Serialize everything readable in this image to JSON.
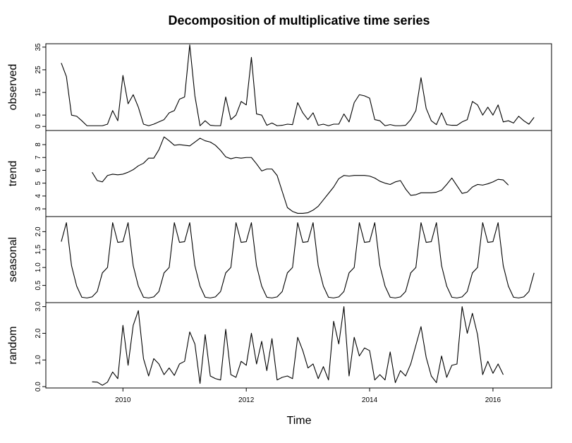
{
  "chart_data": {
    "type": "line",
    "title": "Decomposition of multiplicative time series",
    "xlabel": "Time",
    "xlim": [
      2008.75,
      2016.95
    ],
    "x_ticks": [
      2010,
      2012,
      2014,
      2016
    ],
    "x_tick_labels": [
      "2010",
      "2012",
      "2014",
      "2016"
    ],
    "x_start": 2009.0,
    "frequency": 12,
    "grid": false,
    "panels": [
      {
        "name": "observed",
        "ylabel": "observed",
        "ylim": [
          -1.8,
          36.5
        ],
        "y_ticks": [
          0,
          5,
          15,
          25,
          35
        ],
        "y_tick_labels": [
          "0",
          "5",
          "15",
          "25",
          "35"
        ],
        "values": [
          28,
          22,
          5,
          4.5,
          2.5,
          0.3,
          0.3,
          0.3,
          0.3,
          1,
          7,
          2.5,
          22.5,
          10,
          14,
          8.5,
          1,
          0.3,
          1,
          2,
          3,
          6,
          7,
          12,
          13,
          36,
          13.5,
          0.3,
          2.5,
          0.5,
          0.3,
          0.3,
          13,
          3,
          5,
          11,
          9.5,
          30.5,
          5.5,
          5,
          0.5,
          1.5,
          0.3,
          0.5,
          1,
          0.8,
          10.5,
          6,
          3,
          6,
          0.5,
          1,
          0.3,
          1,
          1,
          5.5,
          2,
          10.5,
          14,
          13.5,
          12.5,
          3,
          2.5,
          0.3,
          0.8,
          0.3,
          0.3,
          0.5,
          3,
          7,
          21.5,
          8,
          2.5,
          0.8,
          6,
          0.8,
          0.5,
          0.5,
          2,
          3,
          11,
          9.5,
          5,
          8.5,
          5,
          9.5,
          2,
          2.5,
          1.5,
          4.5,
          2.5,
          1,
          4
        ]
      },
      {
        "name": "trend",
        "ylabel": "trend",
        "ylim": [
          2.4,
          9.1
        ],
        "y_ticks": [
          3,
          4,
          5,
          6,
          7,
          8
        ],
        "y_tick_labels": [
          "3",
          "4",
          "5",
          "6",
          "7",
          "8"
        ],
        "start_index": 6,
        "values": [
          5.85,
          5.2,
          5.1,
          5.6,
          5.7,
          5.65,
          5.7,
          5.85,
          6.05,
          6.35,
          6.55,
          6.95,
          6.95,
          7.6,
          8.6,
          8.3,
          7.95,
          8.0,
          7.95,
          7.9,
          8.2,
          8.5,
          8.3,
          8.2,
          7.95,
          7.55,
          7.05,
          6.9,
          7.0,
          6.95,
          7.0,
          7.0,
          6.5,
          5.95,
          6.1,
          6.1,
          5.6,
          4.35,
          3.1,
          2.8,
          2.65,
          2.65,
          2.7,
          2.9,
          3.2,
          3.7,
          4.2,
          4.7,
          5.35,
          5.6,
          5.55,
          5.6,
          5.6,
          5.6,
          5.55,
          5.4,
          5.15,
          5.0,
          4.9,
          5.1,
          5.2,
          4.55,
          4.05,
          4.1,
          4.25,
          4.25,
          4.25,
          4.3,
          4.45,
          4.9,
          5.4,
          4.8,
          4.2,
          4.3,
          4.7,
          4.9,
          4.85,
          4.95,
          5.1,
          5.3,
          5.25,
          4.85
        ]
      },
      {
        "name": "seasonal",
        "ylabel": "seasonal",
        "ylim": [
          0.02,
          2.42
        ],
        "y_ticks": [
          0.5,
          1.0,
          1.5,
          2.0
        ],
        "y_tick_labels": [
          "0.5",
          "1.0",
          "1.5",
          "2.0"
        ],
        "pattern": [
          1.72,
          2.25,
          1.05,
          0.48,
          0.17,
          0.15,
          0.18,
          0.33,
          0.85,
          1.0,
          2.25,
          1.7
        ],
        "start_pattern_index": 0,
        "values": [
          1.72,
          2.25,
          1.05,
          0.48,
          0.17,
          0.15,
          0.18,
          0.33,
          0.85,
          1.0,
          2.25,
          1.7,
          1.72,
          2.25,
          1.05,
          0.48,
          0.17,
          0.15,
          0.18,
          0.33,
          0.85,
          1.0,
          2.25,
          1.7,
          1.72,
          2.25,
          1.05,
          0.48,
          0.17,
          0.15,
          0.18,
          0.33,
          0.85,
          1.0,
          2.25,
          1.7,
          1.72,
          2.25,
          1.05,
          0.48,
          0.17,
          0.15,
          0.18,
          0.33,
          0.85,
          1.0,
          2.25,
          1.7,
          1.72,
          2.25,
          1.05,
          0.48,
          0.17,
          0.15,
          0.18,
          0.33,
          0.85,
          1.0,
          2.25,
          1.7,
          1.72,
          2.25,
          1.05,
          0.48,
          0.17,
          0.15,
          0.18,
          0.33,
          0.85,
          1.0,
          2.25,
          1.7,
          1.72,
          2.25,
          1.05,
          0.48,
          0.17,
          0.15,
          0.18,
          0.33,
          0.85,
          1.0,
          2.25,
          1.7,
          1.72,
          2.25,
          1.05,
          0.48,
          0.17,
          0.15,
          0.18,
          0.33,
          0.85
        ]
      },
      {
        "name": "random",
        "ylabel": "random",
        "ylim": [
          -0.05,
          3.15
        ],
        "y_ticks": [
          0.0,
          1.0,
          2.0,
          3.0
        ],
        "y_tick_labels": [
          "0.0",
          "1.0",
          "2.0",
          "3.0"
        ],
        "start_index": 6,
        "values": [
          0.18,
          0.17,
          0.05,
          0.17,
          0.55,
          0.3,
          2.3,
          0.8,
          2.3,
          2.85,
          1.05,
          0.4,
          1.05,
          0.85,
          0.45,
          0.7,
          0.42,
          0.85,
          0.95,
          2.05,
          1.6,
          0.12,
          1.95,
          0.4,
          0.3,
          0.25,
          2.15,
          0.45,
          0.35,
          0.95,
          0.8,
          2.0,
          0.85,
          1.7,
          0.6,
          1.8,
          0.25,
          0.35,
          0.4,
          0.3,
          1.85,
          1.35,
          0.7,
          0.85,
          0.3,
          0.75,
          0.25,
          2.45,
          1.6,
          3.0,
          0.4,
          1.85,
          1.15,
          1.45,
          1.35,
          0.25,
          0.45,
          0.25,
          1.3,
          0.15,
          0.6,
          0.4,
          0.85,
          1.55,
          2.25,
          1.1,
          0.4,
          0.15,
          1.15,
          0.35,
          0.8,
          0.85,
          3.0,
          2.0,
          2.75,
          1.95,
          0.45,
          0.95,
          0.5,
          0.85,
          0.45
        ]
      }
    ]
  }
}
